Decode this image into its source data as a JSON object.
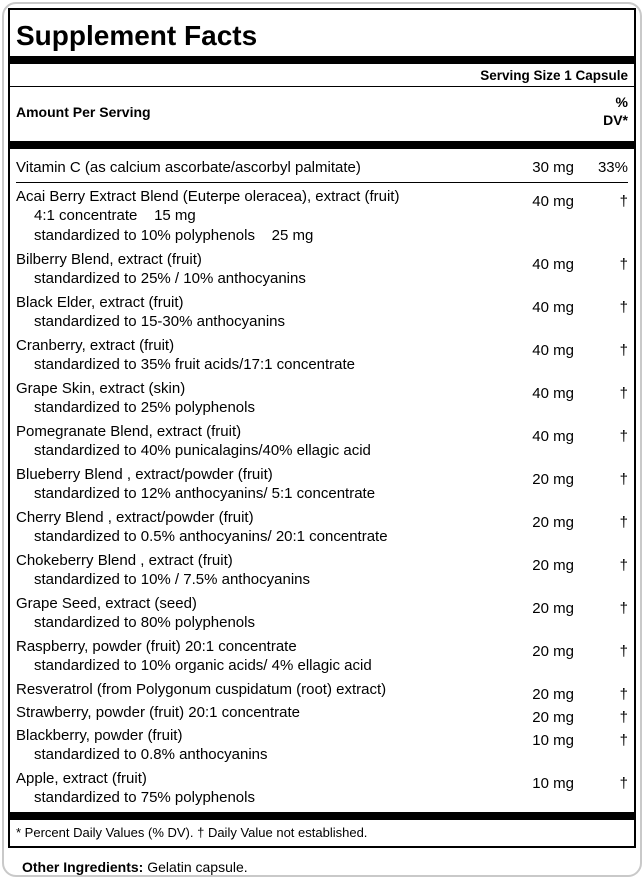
{
  "panel": {
    "title": "Supplement Facts",
    "serving_size": "Serving Size 1 Capsule",
    "header": {
      "amount_label": "Amount Per Serving",
      "dv_line1": "%",
      "dv_line2": "DV*"
    },
    "rows": [
      {
        "name": "Vitamin C (as calcium ascorbate/ascorbyl palmitate)",
        "amount": "30 mg",
        "dv": "33%",
        "subs": []
      },
      {
        "name": "Acai Berry Extract Blend (Euterpe oleracea), extract (fruit)",
        "amount": "40 mg",
        "dv": "†",
        "subs": [
          "4:1 concentrate    15 mg",
          "standardized to 10% polyphenols    25 mg"
        ]
      },
      {
        "name": "Bilberry Blend, extract (fruit)",
        "amount": "40 mg",
        "dv": "†",
        "subs": [
          "standardized to 25% / 10% anthocyanins"
        ]
      },
      {
        "name": "Black Elder, extract (fruit)",
        "amount": "40 mg",
        "dv": "†",
        "subs": [
          "standardized to 15-30% anthocyanins"
        ]
      },
      {
        "name": "Cranberry, extract (fruit)",
        "amount": "40 mg",
        "dv": "†",
        "subs": [
          "standardized to 35% fruit acids/17:1 concentrate"
        ]
      },
      {
        "name": "Grape Skin, extract (skin)",
        "amount": "40 mg",
        "dv": "†",
        "subs": [
          "standardized to 25% polyphenols"
        ]
      },
      {
        "name": "Pomegranate Blend, extract (fruit)",
        "amount": "40 mg",
        "dv": "†",
        "subs": [
          "standardized to 40% punicalagins/40% ellagic acid"
        ]
      },
      {
        "name": "Blueberry Blend , extract/powder (fruit)",
        "amount": "20 mg",
        "dv": "†",
        "subs": [
          "standardized to 12% anthocyanins/ 5:1 concentrate"
        ]
      },
      {
        "name": "Cherry Blend , extract/powder (fruit)",
        "amount": "20 mg",
        "dv": "†",
        "subs": [
          "standardized to 0.5% anthocyanins/ 20:1 concentrate"
        ]
      },
      {
        "name": "Chokeberry Blend , extract (fruit)",
        "amount": "20 mg",
        "dv": "†",
        "subs": [
          "standardized to 10% / 7.5% anthocyanins"
        ]
      },
      {
        "name": "Grape Seed, extract (seed)",
        "amount": "20 mg",
        "dv": "†",
        "subs": [
          "standardized to 80% polyphenols"
        ]
      },
      {
        "name": "Raspberry, powder (fruit) 20:1 concentrate",
        "amount": "20 mg",
        "dv": "†",
        "subs": [
          "standardized to 10% organic acids/ 4% ellagic acid"
        ]
      },
      {
        "name": "Resveratrol (from Polygonum cuspidatum (root) extract)",
        "amount": "20 mg",
        "dv": "†",
        "subs": []
      },
      {
        "name": "Strawberry, powder (fruit) 20:1 concentrate",
        "amount": "20 mg",
        "dv": "†",
        "subs": []
      },
      {
        "name": "Blackberry, powder (fruit)",
        "amount": "10 mg",
        "dv": "†",
        "subs": [
          "standardized to 0.8% anthocyanins"
        ]
      },
      {
        "name": "Apple, extract (fruit)",
        "amount": "10 mg",
        "dv": "†",
        "subs": [
          "standardized to 75% polyphenols"
        ]
      }
    ],
    "footnote": "* Percent Daily Values (% DV). † Daily Value not established."
  },
  "other_ingredients": {
    "label": "Other Ingredients:",
    "value": " Gelatin capsule."
  }
}
